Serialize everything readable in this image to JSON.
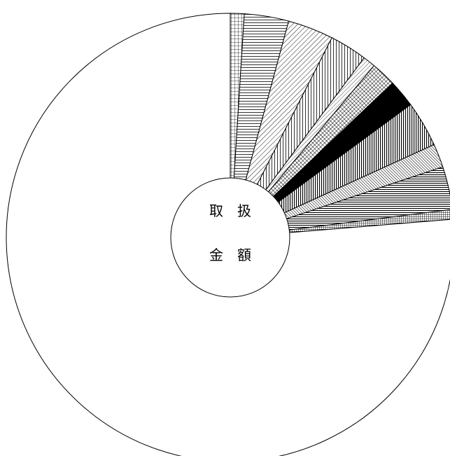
{
  "chart_data": {
    "type": "pie",
    "center_label": [
      "取　扱",
      "金　額"
    ],
    "start_angle_deg": 0,
    "direction": "clockwise",
    "values": [
      1.0,
      3.2,
      3.3,
      2.7,
      0.9,
      1.8,
      2.0,
      3.3,
      1.7,
      3.1,
      0.7,
      76.3
    ],
    "slice_fills": [
      "grid-fine",
      "horizontal-lines",
      "diagonal-hatch",
      "vertical-lines",
      "diagonal-hatch-light",
      "crosshatch",
      "solid-black",
      "vertical-lines-dark",
      "diagonal-hatch-dark",
      "horizontal-lines-dark",
      "grid-dense",
      "white"
    ],
    "colors": {
      "stroke": "#000000",
      "background": "#ffffff"
    }
  }
}
